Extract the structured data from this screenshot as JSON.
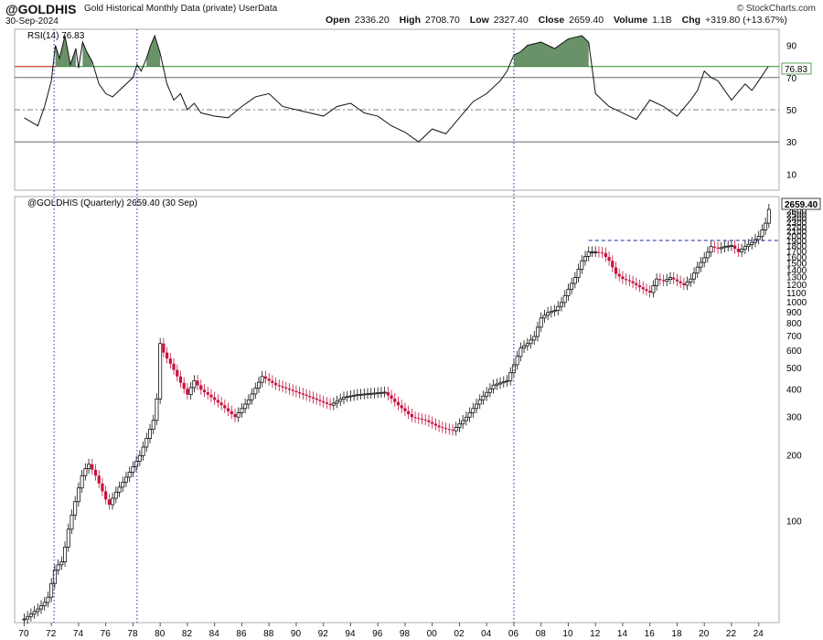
{
  "header": {
    "symbol": "@GOLDHIS",
    "description": "Gold Historical Monthly Data (private)",
    "source": "UserData",
    "date": "30-Sep-2024",
    "watermark": "© StockCharts.com",
    "quote": {
      "open_label": "Open",
      "open": "2336.20",
      "high_label": "High",
      "high": "2708.70",
      "low_label": "Low",
      "low": "2327.40",
      "close_label": "Close",
      "close": "2659.40",
      "volume_label": "Volume",
      "volume": "1.1B",
      "chg_label": "Chg",
      "chg": "+319.80 (+13.67%)"
    }
  },
  "rsi_panel": {
    "legend": "RSI(14) 76.83",
    "value_tag": "76.83"
  },
  "price_panel": {
    "legend": "@GOLDHIS (Quarterly) 2659.40 (30 Sep)",
    "value_tag": "2659.40"
  },
  "colors": {
    "up": "#111111",
    "down": "#c8123e",
    "rsi_fill": "#4f7f4f",
    "overbought_line": "#2e8b2e",
    "oversold_marker": "#e03020",
    "dotted_lines": "#1a2aa0"
  },
  "chart_data": [
    {
      "type": "line",
      "name": "RSI(14)",
      "yticks": [
        10,
        30,
        50,
        70,
        90
      ],
      "ylim": [
        0,
        100
      ],
      "reference_lines": [
        30,
        50,
        70
      ],
      "x": [
        1970,
        1971,
        1971.5,
        1972,
        1972.3,
        1972.6,
        1973,
        1973.4,
        1973.8,
        1974,
        1974.3,
        1974.6,
        1975,
        1975.5,
        1976,
        1976.5,
        1977,
        1977.5,
        1978,
        1978.3,
        1978.6,
        1979,
        1979.3,
        1979.6,
        1980,
        1980.5,
        1981,
        1981.5,
        1982,
        1982.5,
        1983,
        1984,
        1985,
        1986,
        1987,
        1988,
        1989,
        1990,
        1991,
        1992,
        1993,
        1994,
        1995,
        1996,
        1997,
        1998,
        1999,
        2000,
        2001,
        2002,
        2003,
        2004,
        2005,
        2005.5,
        2006,
        2006.5,
        2007,
        2008,
        2009,
        2010,
        2011,
        2011.5,
        2012,
        2013,
        2014,
        2015,
        2016,
        2017,
        2018,
        2019,
        2019.5,
        2020,
        2020.5,
        2021,
        2022,
        2023,
        2023.5,
        2024,
        2024.7
      ],
      "values": [
        45,
        40,
        52,
        68,
        90,
        82,
        96,
        78,
        88,
        76,
        92,
        86,
        80,
        66,
        60,
        58,
        62,
        66,
        70,
        78,
        74,
        82,
        90,
        96,
        85,
        66,
        56,
        60,
        50,
        54,
        48,
        46,
        45,
        52,
        58,
        60,
        52,
        50,
        48,
        46,
        52,
        54,
        48,
        46,
        40,
        36,
        30,
        38,
        35,
        45,
        55,
        60,
        68,
        74,
        84,
        86,
        90,
        92,
        88,
        94,
        96,
        92,
        60,
        52,
        48,
        44,
        56,
        52,
        46,
        56,
        62,
        74,
        70,
        68,
        56,
        66,
        62,
        68,
        76.83
      ]
    },
    {
      "type": "bar",
      "name": "@GOLDHIS (Quarterly)",
      "scale": "log",
      "yticks": [
        100,
        200,
        300,
        400,
        500,
        600,
        700,
        800,
        900,
        1000,
        1100,
        1200,
        1300,
        1400,
        1500,
        1600,
        1700,
        1800,
        1900,
        2000,
        2100,
        2200,
        2300,
        2400,
        2500,
        2600,
        2700,
        2800
      ],
      "xticks": [
        "70",
        "72",
        "74",
        "76",
        "78",
        "80",
        "82",
        "84",
        "86",
        "88",
        "90",
        "92",
        "94",
        "96",
        "98",
        "00",
        "02",
        "04",
        "06",
        "08",
        "10",
        "12",
        "14",
        "16",
        "18",
        "20",
        "22",
        "24"
      ],
      "ylim": [
        35,
        2900
      ],
      "resistance_level": 1920,
      "x": [
        1970,
        1971,
        1971.7,
        1972.3,
        1972.8,
        1973.3,
        1973.7,
        1974.2,
        1974.7,
        1975.2,
        1975.7,
        1976.2,
        1976.7,
        1977.2,
        1977.8,
        1978.5,
        1979,
        1979.5,
        1979.8,
        1980,
        1980.3,
        1980.8,
        1981.5,
        1982,
        1982.5,
        1983,
        1983.5,
        1984.5,
        1985.5,
        1986.5,
        1987.5,
        1988.5,
        1989.5,
        1990.5,
        1991.5,
        1992.5,
        1993.5,
        1994.5,
        1995.5,
        1996.5,
        1997.5,
        1998.5,
        1999.5,
        2000.5,
        2001.5,
        2002.5,
        2003.5,
        2004.5,
        2005.5,
        2006,
        2006.5,
        2007,
        2007.5,
        2008,
        2008.5,
        2009,
        2009.5,
        2010,
        2010.5,
        2011,
        2011.5,
        2012,
        2012.5,
        2013,
        2013.5,
        2014,
        2014.5,
        2015,
        2015.5,
        2016,
        2016.5,
        2017,
        2017.5,
        2018,
        2018.5,
        2019,
        2019.5,
        2020,
        2020.5,
        2021,
        2021.5,
        2022,
        2022.5,
        2023,
        2023.5,
        2024,
        2024.5,
        2024.75
      ],
      "values": [
        36,
        40,
        44,
        62,
        66,
        96,
        120,
        160,
        185,
        165,
        140,
        118,
        135,
        150,
        170,
        200,
        240,
        290,
        380,
        650,
        580,
        520,
        430,
        380,
        440,
        400,
        380,
        340,
        300,
        360,
        460,
        420,
        400,
        380,
        360,
        340,
        370,
        380,
        385,
        390,
        340,
        300,
        290,
        270,
        260,
        300,
        360,
        420,
        440,
        520,
        620,
        650,
        700,
        850,
        900,
        920,
        1000,
        1150,
        1300,
        1550,
        1700,
        1700,
        1680,
        1550,
        1350,
        1280,
        1250,
        1200,
        1150,
        1110,
        1280,
        1250,
        1300,
        1250,
        1200,
        1280,
        1450,
        1600,
        1800,
        1760,
        1800,
        1820,
        1700,
        1800,
        1880,
        2000,
        2300,
        2659.4
      ]
    }
  ]
}
